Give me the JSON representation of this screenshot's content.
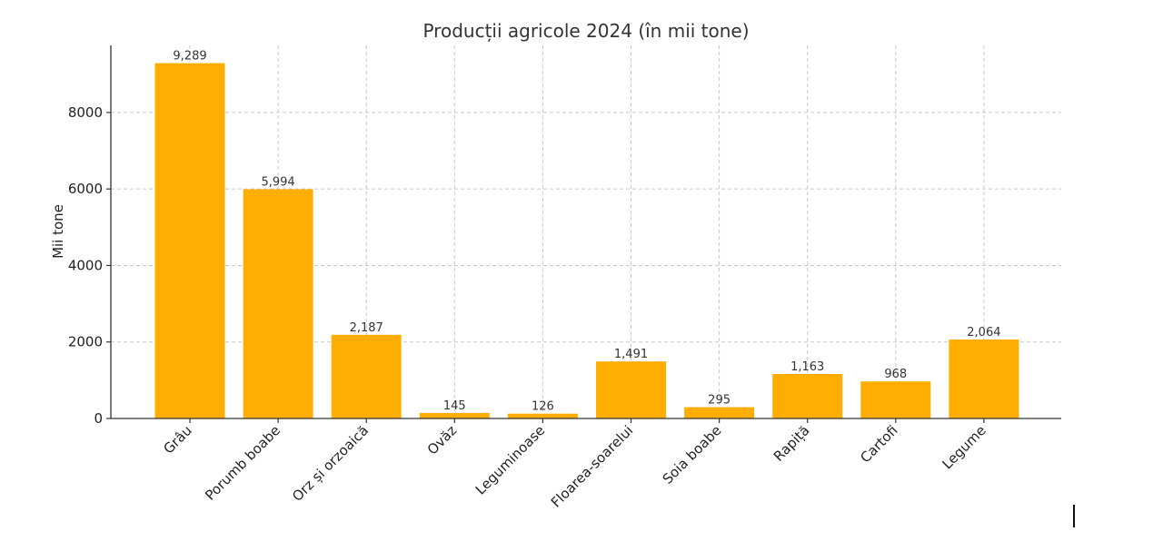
{
  "chart_data": {
    "type": "bar",
    "title": "Producții agricole 2024 (în mii tone)",
    "xlabel": "",
    "ylabel": "Mii tone",
    "categories": [
      "Grâu",
      "Porumb boabe",
      "Orz și orzoaică",
      "Ovăz",
      "Leguminoase",
      "Floarea-soarelui",
      "Soia boabe",
      "Rapiță",
      "Cartofi",
      "Legume"
    ],
    "values": [
      9289,
      5994,
      2187,
      145,
      126,
      1491,
      295,
      1163,
      968,
      2064
    ],
    "data_labels": [
      "9,289",
      "5,994",
      "2,187",
      "145",
      "126",
      "1,491",
      "295",
      "1,163",
      "968",
      "2,064"
    ],
    "yticks": [
      0,
      2000,
      4000,
      6000,
      8000
    ],
    "ylim": [
      0,
      9754
    ],
    "grid": true,
    "bar_color": "#ffad00"
  }
}
